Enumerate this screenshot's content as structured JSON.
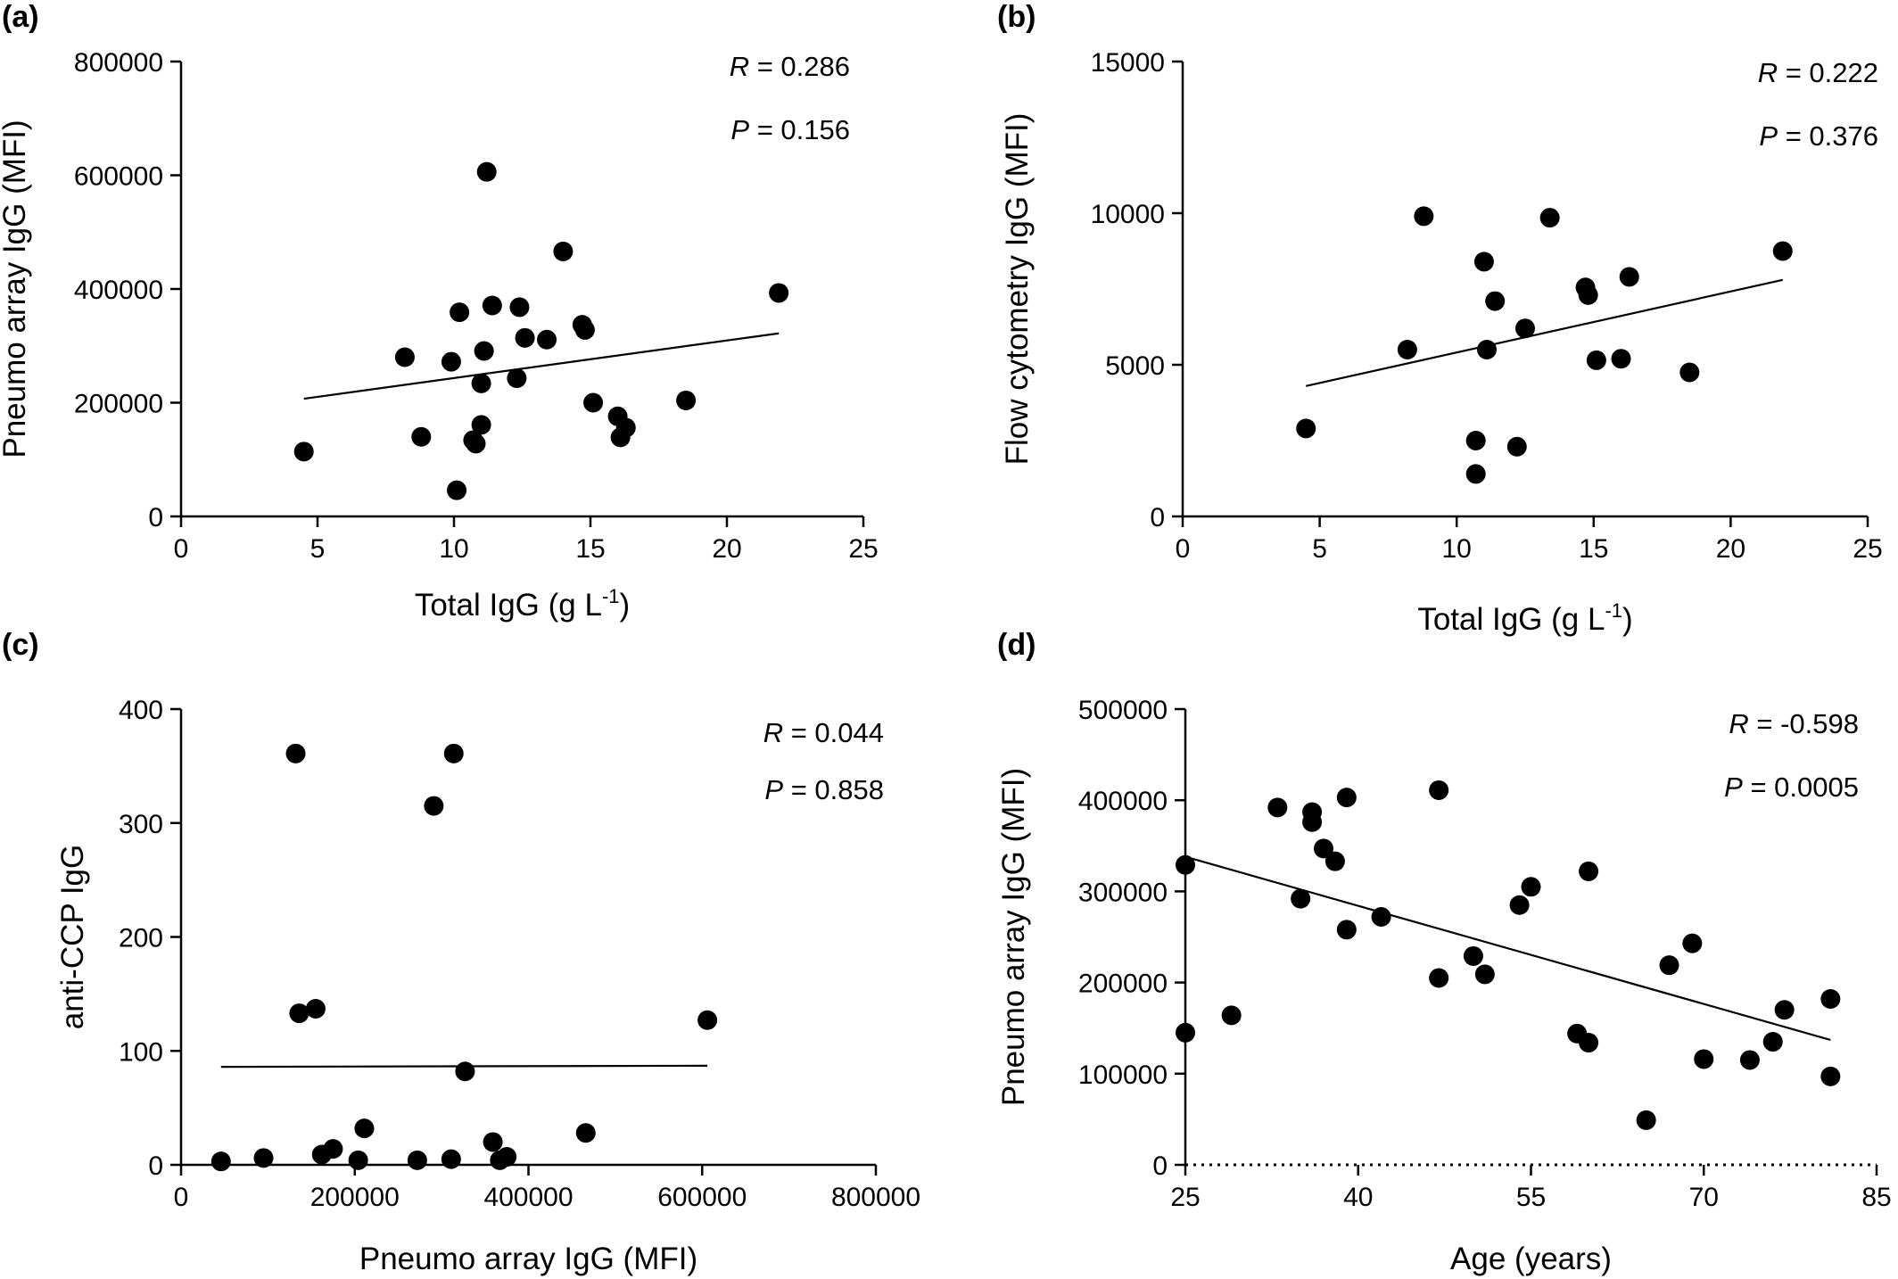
{
  "chart_data": [
    {
      "panel": "(a)",
      "type": "scatter",
      "xlabel": "Total IgG (g L",
      "xlabel_sup": "-1",
      "xlabel_end": ")",
      "ylabel": "Pneumo array IgG (MFI)",
      "xlim": [
        0,
        25
      ],
      "ylim": [
        0,
        800000
      ],
      "xticks": [
        0,
        5,
        10,
        15,
        20,
        25
      ],
      "yticks": [
        0,
        200000,
        400000,
        600000,
        800000
      ],
      "xtick_labels": [
        "0",
        "5",
        "10",
        "15",
        "20",
        "25"
      ],
      "ytick_labels": [
        "0",
        "200000",
        "400000",
        "600000",
        "800000"
      ],
      "stat_r": "0.286",
      "stat_p": "0.156",
      "fit_line": {
        "x": [
          4.5,
          21.9
        ],
        "y": [
          207000,
          322000
        ]
      },
      "points": [
        [
          4.5,
          114000
        ],
        [
          8.2,
          280000
        ],
        [
          8.8,
          140000
        ],
        [
          9.9,
          272000
        ],
        [
          10.1,
          46000
        ],
        [
          10.2,
          359000
        ],
        [
          10.7,
          134000
        ],
        [
          10.8,
          128000
        ],
        [
          11.0,
          234000
        ],
        [
          11.0,
          161000
        ],
        [
          11.1,
          291000
        ],
        [
          11.2,
          606000
        ],
        [
          11.4,
          371000
        ],
        [
          12.3,
          243000
        ],
        [
          12.4,
          368000
        ],
        [
          12.6,
          314000
        ],
        [
          13.4,
          311000
        ],
        [
          14.0,
          466000
        ],
        [
          14.7,
          337000
        ],
        [
          14.8,
          328000
        ],
        [
          15.1,
          200000
        ],
        [
          16.0,
          176000
        ],
        [
          16.1,
          139000
        ],
        [
          16.3,
          156000
        ],
        [
          18.5,
          204000
        ],
        [
          21.9,
          393000
        ]
      ]
    },
    {
      "panel": "(b)",
      "type": "scatter",
      "xlabel": "Total IgG (g L",
      "xlabel_sup": "-1",
      "xlabel_end": ")",
      "ylabel": "Flow cytometry IgG (MFI)",
      "xlim": [
        0,
        25
      ],
      "ylim": [
        0,
        15000
      ],
      "xticks": [
        0,
        5,
        10,
        15,
        20,
        25
      ],
      "yticks": [
        0,
        5000,
        10000,
        15000
      ],
      "xtick_labels": [
        "0",
        "5",
        "10",
        "15",
        "20",
        "25"
      ],
      "ytick_labels": [
        "0",
        "5000",
        "10000",
        "15000"
      ],
      "stat_r": "0.222",
      "stat_p": "0.376",
      "fit_line": {
        "x": [
          4.5,
          21.9
        ],
        "y": [
          4300,
          7800
        ]
      },
      "points": [
        [
          4.5,
          2900
        ],
        [
          8.2,
          5500
        ],
        [
          8.8,
          9900
        ],
        [
          10.7,
          1400
        ],
        [
          10.7,
          2500
        ],
        [
          11.0,
          8400
        ],
        [
          11.1,
          5500
        ],
        [
          11.4,
          7100
        ],
        [
          12.2,
          2300
        ],
        [
          12.5,
          6200
        ],
        [
          13.4,
          9850
        ],
        [
          14.7,
          7550
        ],
        [
          14.8,
          7300
        ],
        [
          15.1,
          5150
        ],
        [
          16.0,
          5200
        ],
        [
          16.3,
          7900
        ],
        [
          18.5,
          4750
        ],
        [
          21.9,
          8750
        ]
      ]
    },
    {
      "panel": "(c)",
      "type": "scatter",
      "xlabel": "Pneumo array IgG (MFI)",
      "ylabel": "anti-CCP IgG",
      "xlim": [
        0,
        800000
      ],
      "ylim": [
        0,
        400
      ],
      "xticks": [
        0,
        200000,
        400000,
        600000,
        800000
      ],
      "yticks": [
        0,
        100,
        200,
        300,
        400
      ],
      "xtick_labels": [
        "0",
        "200000",
        "400000",
        "600000",
        "800000"
      ],
      "ytick_labels": [
        "0",
        "100",
        "200",
        "300",
        "400"
      ],
      "stat_r": "0.044",
      "stat_p": "0.858",
      "fit_line": {
        "x": [
          46000,
          606000
        ],
        "y": [
          86,
          87
        ]
      },
      "points": [
        [
          46000,
          3
        ],
        [
          95000,
          6
        ],
        [
          132000,
          361
        ],
        [
          136000,
          133
        ],
        [
          155000,
          137
        ],
        [
          162000,
          9
        ],
        [
          175000,
          14
        ],
        [
          204000,
          4
        ],
        [
          211000,
          32
        ],
        [
          272000,
          4
        ],
        [
          291000,
          315
        ],
        [
          311000,
          5
        ],
        [
          314000,
          361
        ],
        [
          327000,
          82
        ],
        [
          359000,
          20
        ],
        [
          367000,
          4
        ],
        [
          375000,
          7
        ],
        [
          466000,
          28
        ],
        [
          606000,
          127
        ]
      ]
    },
    {
      "panel": "(d)",
      "type": "scatter",
      "xlabel": "Age (years)",
      "ylabel": "Pneumo array IgG (MFI)",
      "xlim": [
        25,
        85
      ],
      "ylim": [
        0,
        500000
      ],
      "xticks": [
        25,
        40,
        55,
        70,
        85
      ],
      "yticks": [
        0,
        100000,
        200000,
        300000,
        400000,
        500000
      ],
      "xtick_labels": [
        "25",
        "40",
        "55",
        "70",
        "85"
      ],
      "ytick_labels": [
        "0",
        "100000",
        "200000",
        "300000",
        "400000",
        "500000"
      ],
      "stat_r": "-0.598",
      "stat_p": "0.0005",
      "fit_line": {
        "x": [
          25,
          81
        ],
        "y": [
          338000,
          137000
        ]
      },
      "points": [
        [
          25,
          329000
        ],
        [
          25,
          145000
        ],
        [
          29,
          164000
        ],
        [
          33,
          392000
        ],
        [
          35,
          292000
        ],
        [
          36,
          387000
        ],
        [
          36,
          376000
        ],
        [
          37,
          347000
        ],
        [
          38,
          333000
        ],
        [
          39,
          403000
        ],
        [
          39,
          258000
        ],
        [
          42,
          272000
        ],
        [
          47,
          411000
        ],
        [
          47,
          205000
        ],
        [
          50,
          229000
        ],
        [
          51,
          209000
        ],
        [
          54,
          285000
        ],
        [
          55,
          305000
        ],
        [
          59,
          144000
        ],
        [
          60,
          322000
        ],
        [
          60,
          134000
        ],
        [
          65,
          49000
        ],
        [
          67,
          219000
        ],
        [
          69,
          243000
        ],
        [
          70,
          116000
        ],
        [
          74,
          115000
        ],
        [
          76,
          135000
        ],
        [
          77,
          170000
        ],
        [
          81,
          182000
        ],
        [
          81,
          97000
        ]
      ]
    }
  ]
}
